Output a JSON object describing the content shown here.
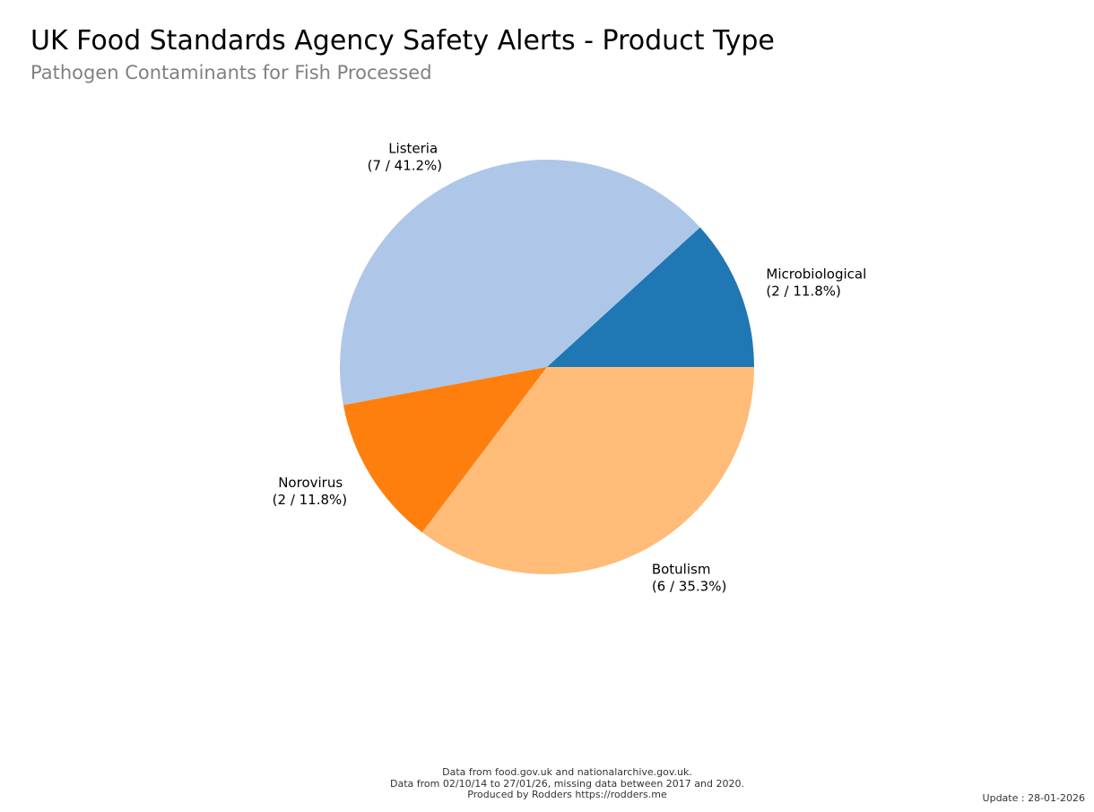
{
  "header": {
    "title": "UK Food Standards Agency Safety Alerts - Product Type",
    "subtitle": "Pathogen Contaminants for Fish Processed"
  },
  "chart_data": {
    "type": "pie",
    "start_angle_deg": 0,
    "direction": "counterclockwise",
    "slices": [
      {
        "label": "Microbiological",
        "value": 2,
        "percent": "11.8%",
        "color": "#1f77b4"
      },
      {
        "label": "Listeria",
        "value": 7,
        "percent": "41.2%",
        "color": "#aec7e8"
      },
      {
        "label": "Norovirus",
        "value": 2,
        "percent": "11.8%",
        "color": "#ff7f0e"
      },
      {
        "label": "Botulism",
        "value": 6,
        "percent": "35.3%",
        "color": "#ffbb78"
      }
    ]
  },
  "footer": {
    "line1": "Data from food.gov.uk and nationalarchive.gov.uk.",
    "line2": "Data from 02/10/14 to 27/01/26, missing data between 2017 and 2020.",
    "line3": "Produced by Rodders https://rodders.me",
    "update": "Update : 28-01-2026"
  }
}
